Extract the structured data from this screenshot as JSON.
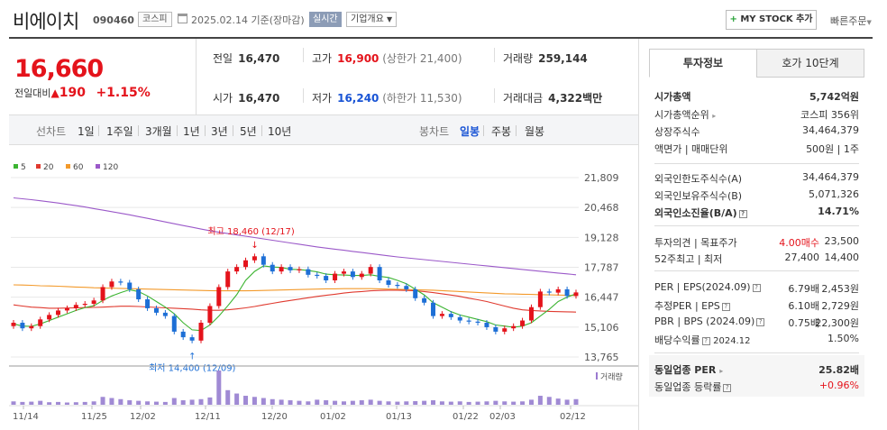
{
  "header": {
    "name": "비에이치",
    "code": "090460",
    "market": "코스피",
    "base_date": "2025.02.14 기준(장마감)",
    "realtime": "실시간",
    "company_overview": "기업개요",
    "mystock": "MY STOCK 추가",
    "quick_order": "빠른주문"
  },
  "price": {
    "current": "16,660",
    "change_label": "전일대비",
    "change_value": "190",
    "change_pct": "+1.15%"
  },
  "stats": {
    "prev_label": "전일",
    "prev": "16,470",
    "high_label": "고가",
    "high": "16,900",
    "upper_limit": "(상한가 21,400)",
    "volume_label": "거래량",
    "volume": "259,144",
    "open_label": "시가",
    "open": "16,470",
    "low_label": "저가",
    "low": "16,240",
    "lower_limit": "(하한가 11,530)",
    "amount_label": "거래대금",
    "amount": "4,322",
    "amount_unit": "백만"
  },
  "period_bar": {
    "line_label": "선차트",
    "line_items": [
      "1일",
      "1주일",
      "3개월",
      "1년",
      "3년",
      "5년",
      "10년"
    ],
    "candle_label": "봉차트",
    "candle_items": [
      "일봉",
      "주봉",
      "월봉"
    ],
    "candle_active": 0
  },
  "chart_data": {
    "type": "candlestick",
    "legend": [
      "5",
      "20",
      "60",
      "120"
    ],
    "ma_colors": [
      "#3cb431",
      "#e03a2f",
      "#f39a2b",
      "#9b59c9"
    ],
    "up_color": "#e4131b",
    "down_color": "#1d6fd6",
    "y_ticks": [
      "21,809",
      "20,468",
      "19,128",
      "17,787",
      "16,447",
      "15,106",
      "13,765"
    ],
    "y_tick_values": [
      21809,
      20468,
      19128,
      17787,
      16447,
      15106,
      13765
    ],
    "x_labels": [
      "11/14",
      "11/25",
      "12/02",
      "12/11",
      "12/20",
      "01/02",
      "01/13",
      "01/22",
      "02/03",
      "02/12"
    ],
    "max_annotation": "최고 18,460 (12/17)",
    "min_annotation": "최저 14,400 (12/09)",
    "max_value": 18460,
    "min_value": 14400,
    "volume_label": "거래량",
    "closes": [
      15300,
      15050,
      15150,
      15450,
      15650,
      15850,
      15950,
      16100,
      16150,
      16300,
      16900,
      17150,
      17100,
      16800,
      16350,
      15950,
      15750,
      15600,
      14900,
      14650,
      14500,
      15300,
      16050,
      16900,
      17600,
      17800,
      18100,
      18280,
      17900,
      17600,
      17800,
      17650,
      17700,
      17450,
      17400,
      17200,
      17500,
      17600,
      17350,
      17500,
      17800,
      17200,
      17000,
      16950,
      16800,
      16400,
      16200,
      15600,
      15700,
      15550,
      15400,
      15350,
      15300,
      15100,
      14900,
      15050,
      15150,
      15400,
      16000,
      16700,
      16650,
      16800,
      16500,
      16660
    ],
    "ma5": [
      15250,
      15150,
      15140,
      15250,
      15400,
      15550,
      15700,
      15850,
      15980,
      16060,
      16300,
      16500,
      16650,
      16780,
      16700,
      16500,
      16250,
      16000,
      15700,
      15300,
      14980,
      14950,
      15200,
      15600,
      16060,
      16560,
      17200,
      17600,
      17850,
      17800,
      17780,
      17700,
      17680,
      17640,
      17580,
      17480,
      17450,
      17440,
      17420,
      17420,
      17450,
      17380,
      17330,
      17200,
      17050,
      16800,
      16550,
      16200,
      16000,
      15800,
      15650,
      15550,
      15450,
      15350,
      15200,
      15150,
      15100,
      15150,
      15300,
      15600,
      15900,
      16250,
      16450,
      16600
    ],
    "ma20": [
      16100,
      16050,
      16000,
      15980,
      15950,
      15950,
      15960,
      15970,
      15980,
      15990,
      16000,
      16020,
      16040,
      16040,
      16030,
      16010,
      15990,
      15970,
      15950,
      15930,
      15910,
      15880,
      15860,
      15860,
      15880,
      15920,
      15970,
      16030,
      16100,
      16170,
      16240,
      16300,
      16360,
      16420,
      16480,
      16530,
      16580,
      16630,
      16670,
      16700,
      16730,
      16750,
      16760,
      16760,
      16750,
      16730,
      16700,
      16650,
      16600,
      16540,
      16480,
      16400,
      16330,
      16250,
      16150,
      16050,
      15950,
      15880,
      15850,
      15830,
      15810,
      15800,
      15790,
      15780
    ],
    "ma60": [
      17000,
      16990,
      16980,
      16960,
      16950,
      16940,
      16920,
      16900,
      16890,
      16870,
      16860,
      16850,
      16840,
      16830,
      16820,
      16810,
      16800,
      16790,
      16780,
      16770,
      16760,
      16750,
      16740,
      16730,
      16730,
      16730,
      16730,
      16740,
      16750,
      16760,
      16770,
      16780,
      16790,
      16800,
      16810,
      16820,
      16820,
      16830,
      16830,
      16830,
      16830,
      16820,
      16810,
      16800,
      16790,
      16780,
      16770,
      16760,
      16740,
      16720,
      16700,
      16680,
      16660,
      16640,
      16620,
      16600,
      16590,
      16580,
      16570,
      16560,
      16550,
      16540,
      16530,
      16520
    ],
    "ma120": [
      20900,
      20860,
      20820,
      20770,
      20720,
      20670,
      20610,
      20550,
      20490,
      20420,
      20350,
      20280,
      20210,
      20140,
      20060,
      19980,
      19900,
      19820,
      19740,
      19660,
      19580,
      19500,
      19430,
      19360,
      19300,
      19240,
      19180,
      19120,
      19060,
      19000,
      18940,
      18880,
      18820,
      18760,
      18700,
      18650,
      18600,
      18550,
      18500,
      18450,
      18400,
      18350,
      18300,
      18250,
      18210,
      18170,
      18130,
      18090,
      18050,
      18010,
      17970,
      17930,
      17890,
      17850,
      17810,
      17770,
      17730,
      17690,
      17650,
      17610,
      17570,
      17530,
      17490,
      17450
    ],
    "volumes": [
      60,
      50,
      55,
      70,
      45,
      50,
      40,
      45,
      50,
      60,
      140,
      120,
      100,
      80,
      70,
      60,
      55,
      50,
      120,
      80,
      90,
      100,
      130,
      610,
      260,
      200,
      160,
      140,
      120,
      100,
      90,
      80,
      70,
      60,
      90,
      80,
      70,
      60,
      70,
      80,
      90,
      70,
      60,
      55,
      60,
      65,
      70,
      80,
      60,
      55,
      60,
      50,
      55,
      60,
      70,
      60,
      55,
      60,
      90,
      160,
      140,
      110,
      90,
      100
    ]
  },
  "right_panel": {
    "tabs": [
      "투자정보",
      "호가 10단계"
    ],
    "market_cap_label": "시가총액",
    "market_cap": "5,742억원",
    "market_cap_rank_label": "시가총액순위",
    "market_cap_rank": "코스피 356위",
    "shares_label": "상장주식수",
    "shares": "34,464,379",
    "par_label": "액면가 | 매매단위",
    "par": "500원 | 1주",
    "foreign_limit_label": "외국인한도주식수(A)",
    "foreign_limit": "34,464,379",
    "foreign_own_label": "외국인보유주식수(B)",
    "foreign_own": "5,071,326",
    "foreign_ratio_label": "외국인소진율(B/A)",
    "foreign_ratio": "14.71%",
    "opinion_label": "투자의견 | 목표주가",
    "opinion": "4.00매수",
    "target": "23,500",
    "w52_label": "52주최고 | 최저",
    "w52_high": "27,400",
    "w52_low": "14,400",
    "per_label": "PER | EPS(2024.09)",
    "per": "6.79배",
    "eps": "2,453원",
    "est_per_label": "추정PER | EPS",
    "est_per": "6.10배",
    "est_eps": "2,729원",
    "pbr_label": "PBR | BPS (2024.09)",
    "pbr": "0.75배",
    "bps": "22,300원",
    "div_label": "배당수익률",
    "div_date": "2024.12",
    "div": "1.50%",
    "sector_per_label": "동일업종 PER",
    "sector_per": "25.82배",
    "sector_chg_label": "동일업종 등락률",
    "sector_chg": "+0.96%"
  }
}
